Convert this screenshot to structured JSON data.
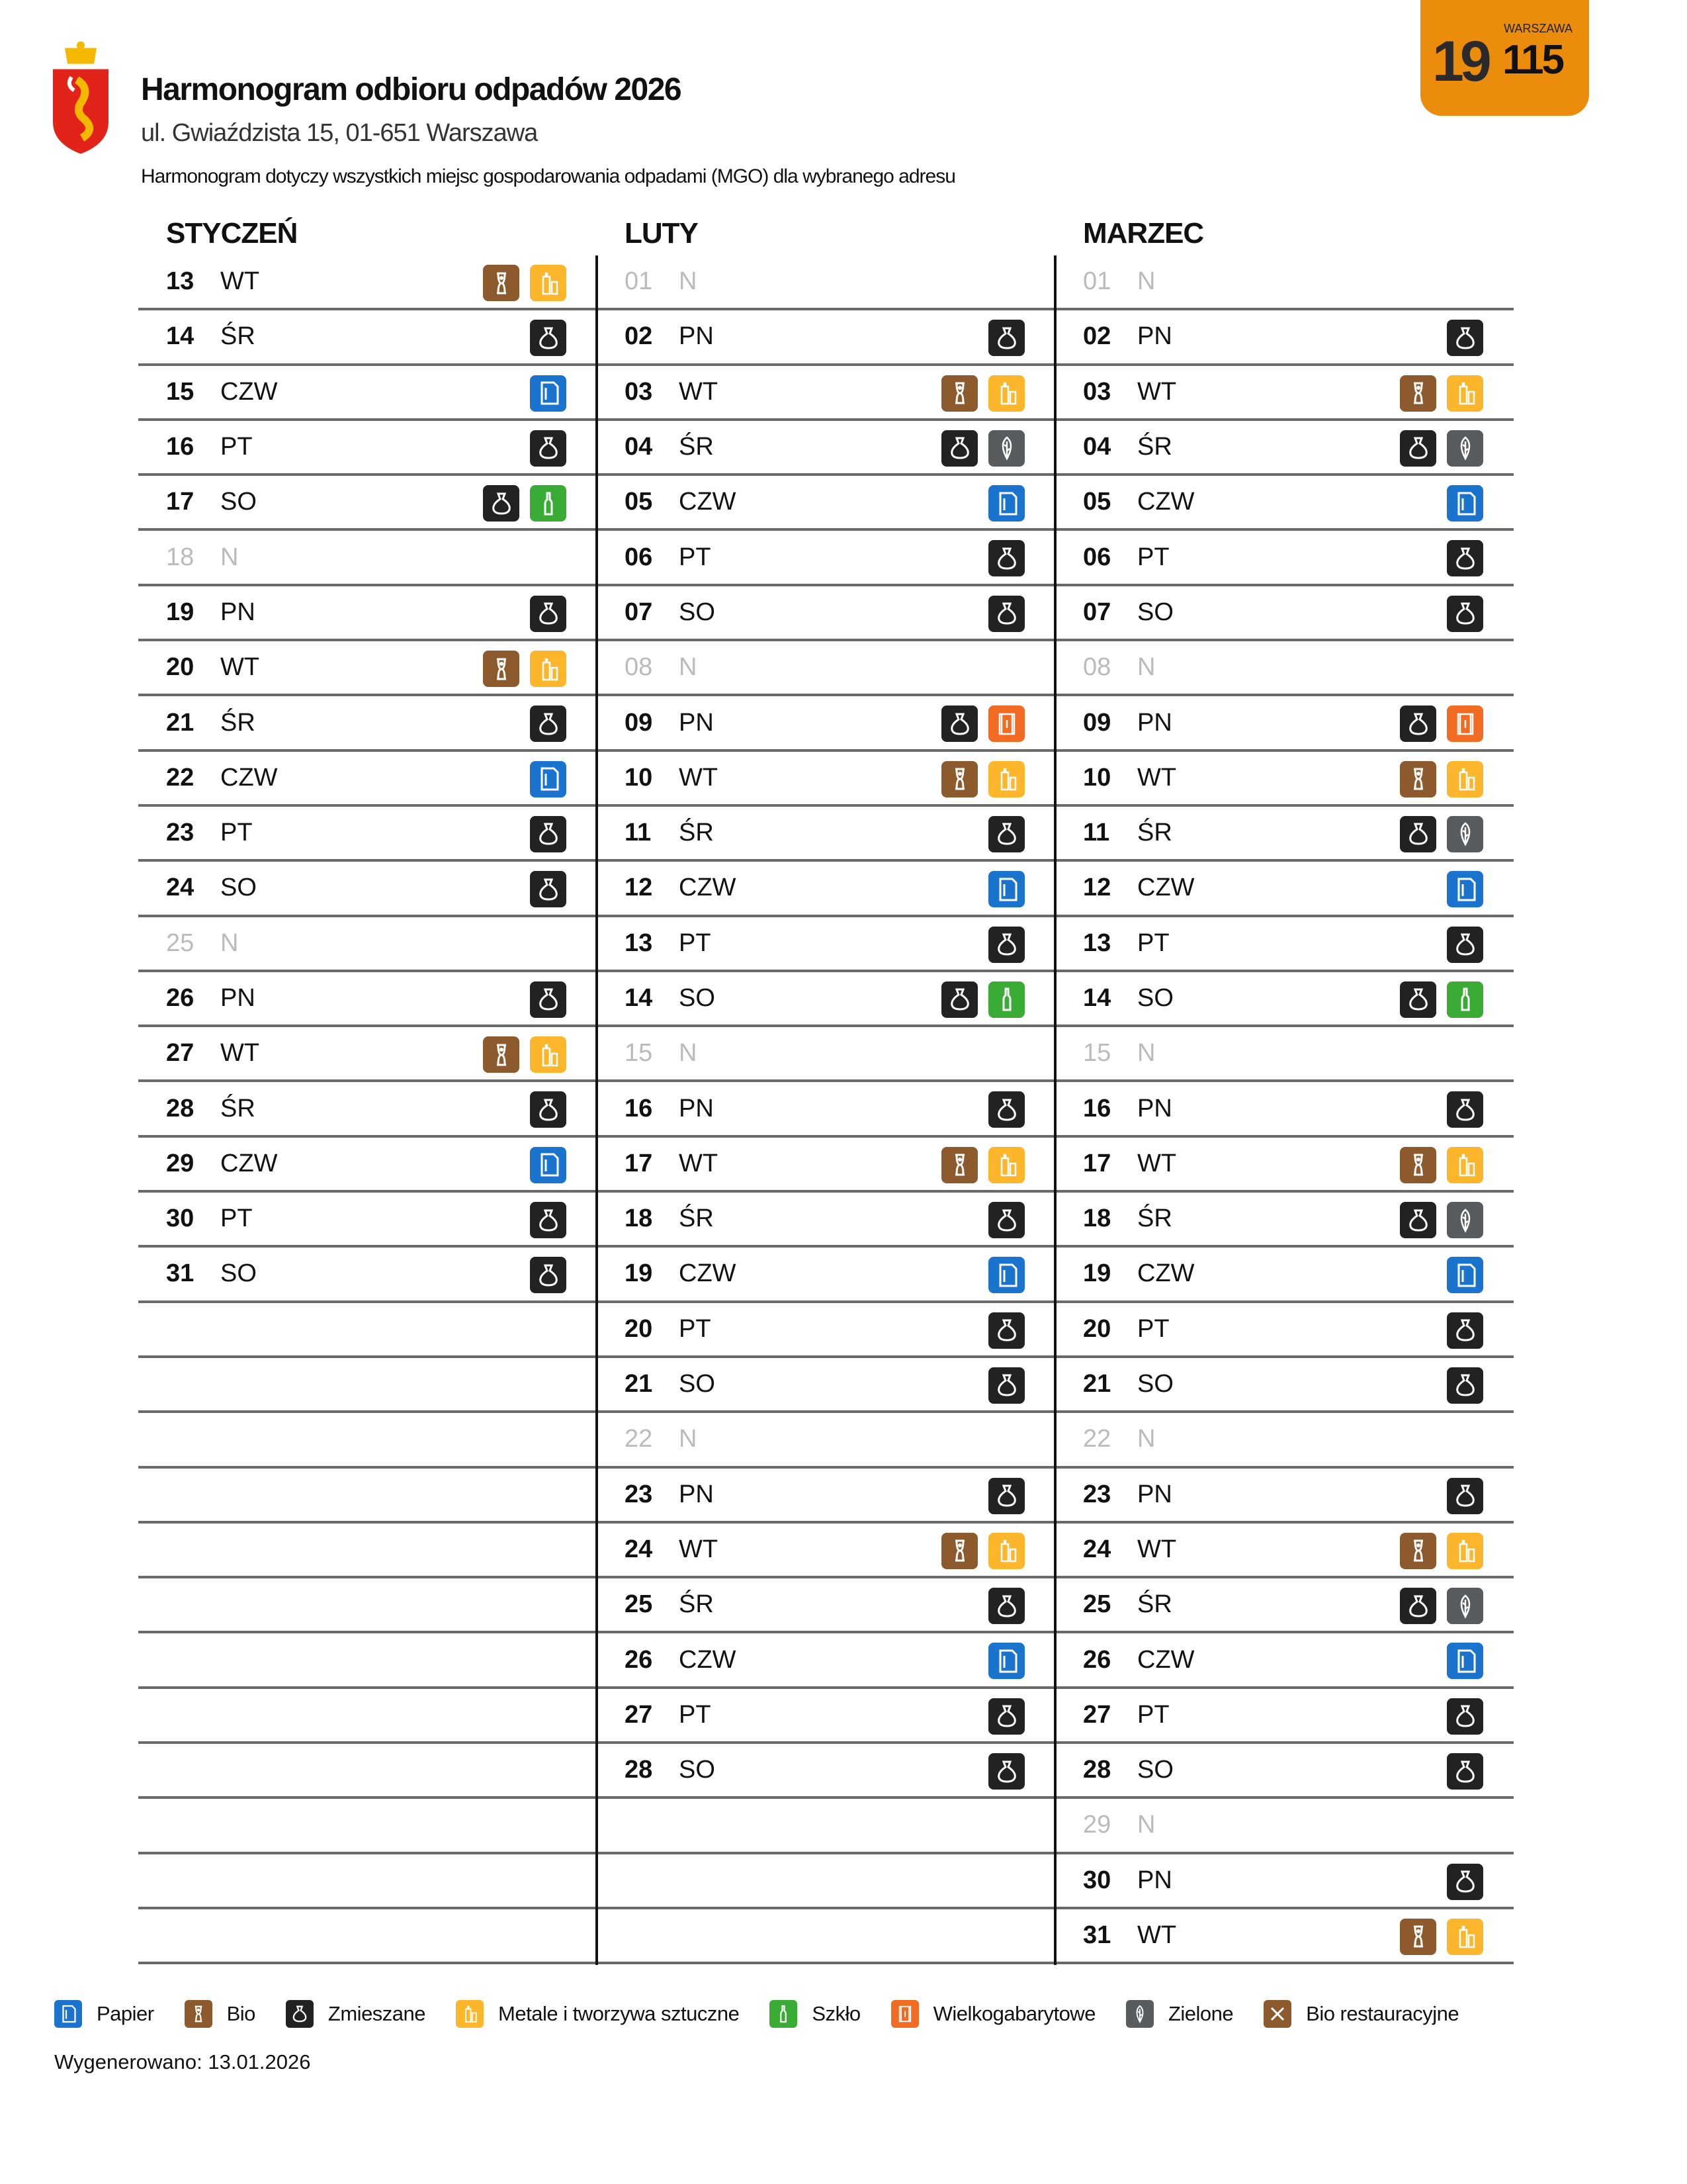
{
  "header": {
    "title": "Harmonogram odbioru odpadów 2026",
    "address": "ul. Gwiaździsta 15, 01-651 Warszawa",
    "note": "Harmonogram dotyczy wszystkich miejsc gospodarowania odpadami (MGO) dla wybranego adresu",
    "logo_text": "Warszawa",
    "badge": {
      "big": "19",
      "small": "WARSZAWA",
      "num": "115"
    }
  },
  "types": {
    "papier": {
      "label": "Papier",
      "color": "#1a73cc"
    },
    "bio": {
      "label": "Bio",
      "color": "#8d5a2e"
    },
    "zmieszane": {
      "label": "Zmieszane",
      "color": "#222222"
    },
    "metale": {
      "label": "Metale i tworzywa sztuczne",
      "color": "#fbb62c"
    },
    "szklo": {
      "label": "Szkło",
      "color": "#3aab35"
    },
    "wielko": {
      "label": "Wielkogabarytowe",
      "color": "#f26b22"
    },
    "zielone": {
      "label": "Zielone",
      "color": "#585c5f"
    },
    "biorest": {
      "label": "Bio restauracyjne",
      "color": "#8d5a2e"
    }
  },
  "legend": [
    "papier",
    "bio",
    "zmieszane",
    "metale",
    "szklo",
    "wielko",
    "zielone",
    "biorest"
  ],
  "months": [
    {
      "name": "STYCZEŃ",
      "days": [
        [
          "13",
          "WT",
          [
            "bio",
            "metale"
          ]
        ],
        [
          "14",
          "ŚR",
          [
            "zmieszane"
          ]
        ],
        [
          "15",
          "CZW",
          [
            "papier"
          ]
        ],
        [
          "16",
          "PT",
          [
            "zmieszane"
          ]
        ],
        [
          "17",
          "SO",
          [
            "zmieszane",
            "szklo"
          ]
        ],
        [
          "18",
          "N",
          []
        ],
        [
          "19",
          "PN",
          [
            "zmieszane"
          ]
        ],
        [
          "20",
          "WT",
          [
            "bio",
            "metale"
          ]
        ],
        [
          "21",
          "ŚR",
          [
            "zmieszane"
          ]
        ],
        [
          "22",
          "CZW",
          [
            "papier"
          ]
        ],
        [
          "23",
          "PT",
          [
            "zmieszane"
          ]
        ],
        [
          "24",
          "SO",
          [
            "zmieszane"
          ]
        ],
        [
          "25",
          "N",
          []
        ],
        [
          "26",
          "PN",
          [
            "zmieszane"
          ]
        ],
        [
          "27",
          "WT",
          [
            "bio",
            "metale"
          ]
        ],
        [
          "28",
          "ŚR",
          [
            "zmieszane"
          ]
        ],
        [
          "29",
          "CZW",
          [
            "papier"
          ]
        ],
        [
          "30",
          "PT",
          [
            "zmieszane"
          ]
        ],
        [
          "31",
          "SO",
          [
            "zmieszane"
          ]
        ]
      ]
    },
    {
      "name": "LUTY",
      "days": [
        [
          "01",
          "N",
          []
        ],
        [
          "02",
          "PN",
          [
            "zmieszane"
          ]
        ],
        [
          "03",
          "WT",
          [
            "bio",
            "metale"
          ]
        ],
        [
          "04",
          "ŚR",
          [
            "zmieszane",
            "zielone"
          ]
        ],
        [
          "05",
          "CZW",
          [
            "papier"
          ]
        ],
        [
          "06",
          "PT",
          [
            "zmieszane"
          ]
        ],
        [
          "07",
          "SO",
          [
            "zmieszane"
          ]
        ],
        [
          "08",
          "N",
          []
        ],
        [
          "09",
          "PN",
          [
            "zmieszane",
            "wielko"
          ]
        ],
        [
          "10",
          "WT",
          [
            "bio",
            "metale"
          ]
        ],
        [
          "11",
          "ŚR",
          [
            "zmieszane"
          ]
        ],
        [
          "12",
          "CZW",
          [
            "papier"
          ]
        ],
        [
          "13",
          "PT",
          [
            "zmieszane"
          ]
        ],
        [
          "14",
          "SO",
          [
            "zmieszane",
            "szklo"
          ]
        ],
        [
          "15",
          "N",
          []
        ],
        [
          "16",
          "PN",
          [
            "zmieszane"
          ]
        ],
        [
          "17",
          "WT",
          [
            "bio",
            "metale"
          ]
        ],
        [
          "18",
          "ŚR",
          [
            "zmieszane"
          ]
        ],
        [
          "19",
          "CZW",
          [
            "papier"
          ]
        ],
        [
          "20",
          "PT",
          [
            "zmieszane"
          ]
        ],
        [
          "21",
          "SO",
          [
            "zmieszane"
          ]
        ],
        [
          "22",
          "N",
          []
        ],
        [
          "23",
          "PN",
          [
            "zmieszane"
          ]
        ],
        [
          "24",
          "WT",
          [
            "bio",
            "metale"
          ]
        ],
        [
          "25",
          "ŚR",
          [
            "zmieszane"
          ]
        ],
        [
          "26",
          "CZW",
          [
            "papier"
          ]
        ],
        [
          "27",
          "PT",
          [
            "zmieszane"
          ]
        ],
        [
          "28",
          "SO",
          [
            "zmieszane"
          ]
        ]
      ]
    },
    {
      "name": "MARZEC",
      "days": [
        [
          "01",
          "N",
          []
        ],
        [
          "02",
          "PN",
          [
            "zmieszane"
          ]
        ],
        [
          "03",
          "WT",
          [
            "bio",
            "metale"
          ]
        ],
        [
          "04",
          "ŚR",
          [
            "zmieszane",
            "zielone"
          ]
        ],
        [
          "05",
          "CZW",
          [
            "papier"
          ]
        ],
        [
          "06",
          "PT",
          [
            "zmieszane"
          ]
        ],
        [
          "07",
          "SO",
          [
            "zmieszane"
          ]
        ],
        [
          "08",
          "N",
          []
        ],
        [
          "09",
          "PN",
          [
            "zmieszane",
            "wielko"
          ]
        ],
        [
          "10",
          "WT",
          [
            "bio",
            "metale"
          ]
        ],
        [
          "11",
          "ŚR",
          [
            "zmieszane",
            "zielone"
          ]
        ],
        [
          "12",
          "CZW",
          [
            "papier"
          ]
        ],
        [
          "13",
          "PT",
          [
            "zmieszane"
          ]
        ],
        [
          "14",
          "SO",
          [
            "zmieszane",
            "szklo"
          ]
        ],
        [
          "15",
          "N",
          []
        ],
        [
          "16",
          "PN",
          [
            "zmieszane"
          ]
        ],
        [
          "17",
          "WT",
          [
            "bio",
            "metale"
          ]
        ],
        [
          "18",
          "ŚR",
          [
            "zmieszane",
            "zielone"
          ]
        ],
        [
          "19",
          "CZW",
          [
            "papier"
          ]
        ],
        [
          "20",
          "PT",
          [
            "zmieszane"
          ]
        ],
        [
          "21",
          "SO",
          [
            "zmieszane"
          ]
        ],
        [
          "22",
          "N",
          []
        ],
        [
          "23",
          "PN",
          [
            "zmieszane"
          ]
        ],
        [
          "24",
          "WT",
          [
            "bio",
            "metale"
          ]
        ],
        [
          "25",
          "ŚR",
          [
            "zmieszane",
            "zielone"
          ]
        ],
        [
          "26",
          "CZW",
          [
            "papier"
          ]
        ],
        [
          "27",
          "PT",
          [
            "zmieszane"
          ]
        ],
        [
          "28",
          "SO",
          [
            "zmieszane"
          ]
        ],
        [
          "29",
          "N",
          []
        ],
        [
          "30",
          "PN",
          [
            "zmieszane"
          ]
        ],
        [
          "31",
          "WT",
          [
            "bio",
            "metale"
          ]
        ]
      ]
    }
  ],
  "footer": {
    "generated": "Wygenerowano: 13.01.2026"
  }
}
